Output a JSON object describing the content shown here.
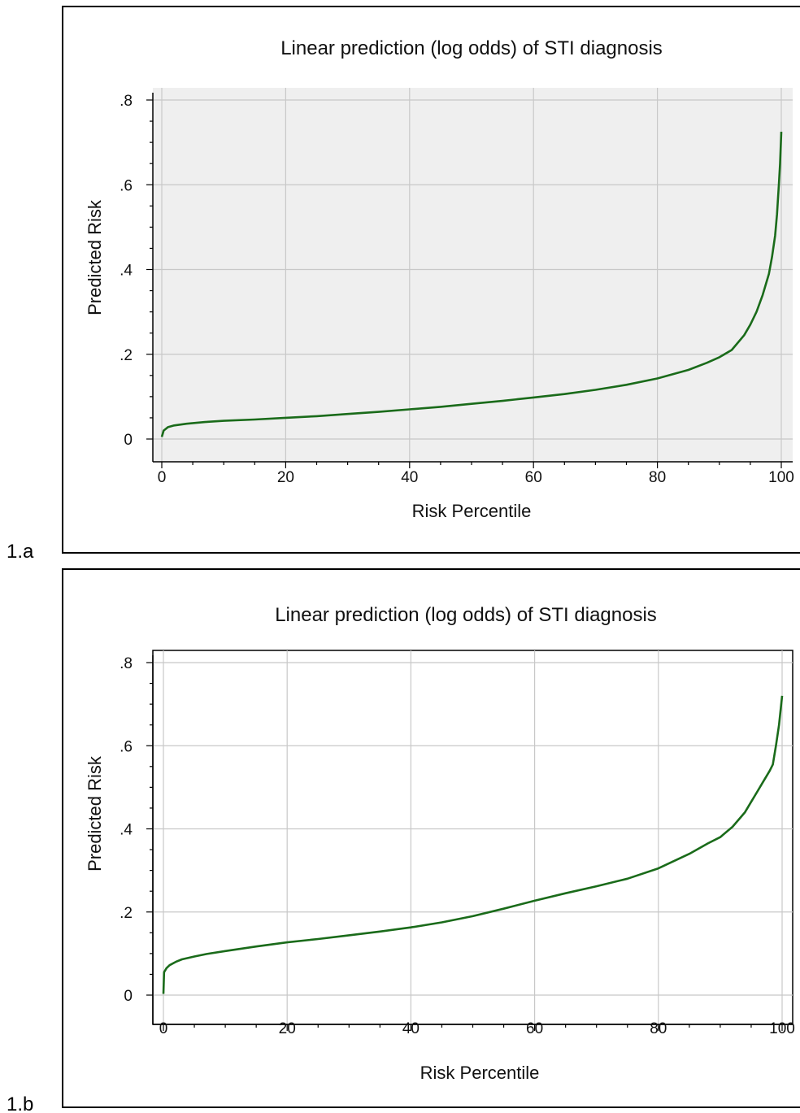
{
  "chart_data": [
    {
      "type": "line",
      "panel_label": "1.a",
      "title": "Linear prediction (log odds) of STI diagnosis",
      "xlabel": "Risk Percentile",
      "ylabel": "Predicted Risk",
      "xlim": [
        0,
        100
      ],
      "ylim": [
        0,
        0.8
      ],
      "xticks": [
        0,
        20,
        40,
        60,
        80,
        100
      ],
      "xtick_labels": [
        "0",
        "20",
        "40",
        "60",
        "80",
        "100"
      ],
      "yticks": [
        0,
        0.2,
        0.4,
        0.6,
        0.8
      ],
      "ytick_labels": [
        "0",
        ".2",
        ".4",
        ".6",
        ".8"
      ],
      "grid": true,
      "plot_background": "#efefef",
      "line_color": "#1a6b1a",
      "series": [
        {
          "x": [
            0,
            0.3,
            1,
            2,
            4,
            7,
            10,
            15,
            20,
            25,
            30,
            35,
            40,
            45,
            50,
            55,
            60,
            65,
            70,
            75,
            80,
            85,
            88,
            90,
            92,
            94,
            95,
            96,
            97,
            98,
            98.5,
            99,
            99.3,
            99.6,
            99.8,
            100
          ],
          "y": [
            0.005,
            0.02,
            0.028,
            0.032,
            0.036,
            0.04,
            0.043,
            0.046,
            0.05,
            0.054,
            0.059,
            0.064,
            0.07,
            0.076,
            0.083,
            0.09,
            0.098,
            0.106,
            0.116,
            0.128,
            0.143,
            0.163,
            0.18,
            0.193,
            0.21,
            0.245,
            0.27,
            0.3,
            0.34,
            0.39,
            0.43,
            0.48,
            0.53,
            0.6,
            0.65,
            0.725
          ]
        }
      ]
    },
    {
      "type": "line",
      "panel_label": "1.b",
      "title": "Linear prediction (log odds) of STI diagnosis",
      "xlabel": "Risk Percentile",
      "ylabel": "Predicted Risk",
      "xlim": [
        0,
        100
      ],
      "ylim": [
        0,
        0.8
      ],
      "xticks": [
        0,
        20,
        40,
        60,
        80,
        100
      ],
      "xtick_labels": [
        "0",
        "20",
        "40",
        "60",
        "80",
        "100"
      ],
      "yticks": [
        0,
        0.2,
        0.4,
        0.6,
        0.8
      ],
      "ytick_labels": [
        "0",
        ".2",
        ".4",
        ".6",
        ".8"
      ],
      "grid": true,
      "plot_background": "#ffffff",
      "line_color": "#1a6b1a",
      "series": [
        {
          "x": [
            0,
            0.1,
            0.5,
            1,
            2,
            3,
            5,
            7,
            10,
            15,
            20,
            25,
            30,
            35,
            40,
            45,
            50,
            55,
            60,
            65,
            70,
            75,
            80,
            85,
            88,
            90,
            92,
            94,
            95,
            96,
            97,
            98,
            98.5,
            99,
            99.5,
            100
          ],
          "y": [
            0.003,
            0.055,
            0.065,
            0.072,
            0.08,
            0.086,
            0.093,
            0.099,
            0.106,
            0.117,
            0.127,
            0.135,
            0.144,
            0.153,
            0.163,
            0.175,
            0.19,
            0.208,
            0.227,
            0.245,
            0.262,
            0.28,
            0.305,
            0.34,
            0.365,
            0.38,
            0.405,
            0.44,
            0.465,
            0.49,
            0.515,
            0.54,
            0.555,
            0.6,
            0.65,
            0.72
          ]
        }
      ]
    }
  ]
}
